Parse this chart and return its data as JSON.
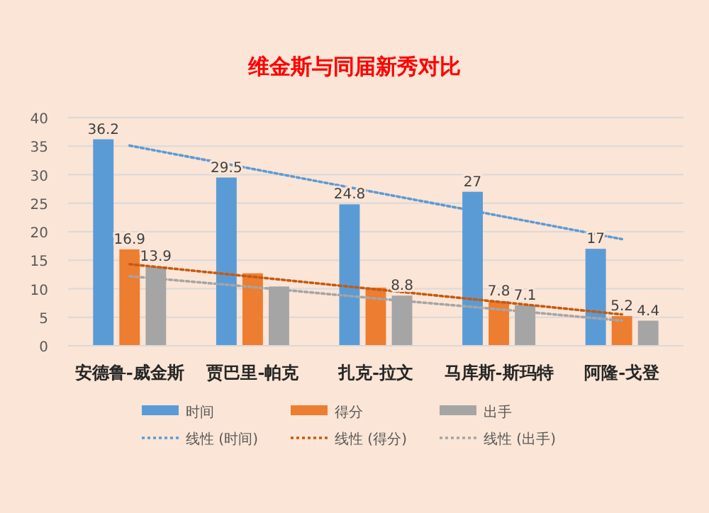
{
  "chart_data": {
    "type": "bar",
    "title": "维金斯与同届新秀对比",
    "categories": [
      "安德鲁-威金斯",
      "贾巴里-帕克",
      "扎克-拉文",
      "马库斯-斯玛特",
      "阿隆-戈登"
    ],
    "series": [
      {
        "name": "时间",
        "color": "#5b9bd5",
        "values": [
          36.2,
          29.5,
          24.8,
          27,
          17
        ],
        "value_labels": [
          "36.2",
          "29.5",
          "24.8",
          "27",
          "17"
        ]
      },
      {
        "name": "得分",
        "color": "#ed7d31",
        "values": [
          16.9,
          12.7,
          10.2,
          7.8,
          5.2
        ],
        "value_labels": [
          "16.9",
          null,
          null,
          "7.8",
          "5.2"
        ]
      },
      {
        "name": "出手",
        "color": "#a5a5a5",
        "values": [
          13.9,
          10.4,
          8.8,
          7.1,
          4.4
        ],
        "value_labels": [
          "13.9",
          null,
          "8.8",
          "7.1",
          "4.4"
        ]
      },
      {
        "name": "线性 (时间)",
        "type": "line",
        "line_style": "dotted",
        "color": "#5b9bd5",
        "values": [
          35.1,
          31.0,
          26.9,
          22.8,
          18.7
        ]
      },
      {
        "name": "线性 (得分)",
        "type": "line",
        "line_style": "dotted",
        "color": "#c55a11",
        "values": [
          14.3,
          12.1,
          9.9,
          7.7,
          5.5
        ]
      },
      {
        "name": "线性 (出手)",
        "type": "line",
        "line_style": "dotted",
        "color": "#a5a5a5",
        "values": [
          12.2,
          10.3,
          8.3,
          6.4,
          4.4
        ]
      }
    ],
    "ylim": [
      0,
      40
    ],
    "yticks": [
      0,
      5,
      10,
      15,
      20,
      25,
      30,
      35,
      40
    ],
    "grid": "y",
    "legend": "bottom"
  }
}
